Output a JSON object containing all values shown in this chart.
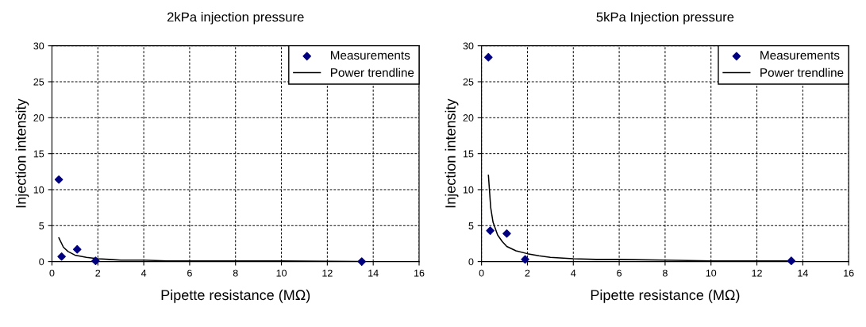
{
  "chart_data": [
    {
      "type": "scatter",
      "title": "2kPa injection pressure",
      "xlabel": "Pipette resistance (MΩ)",
      "ylabel": "Injection intensity",
      "xlim": [
        0,
        16
      ],
      "xticks": [
        0,
        2,
        4,
        6,
        8,
        10,
        12,
        14,
        16
      ],
      "ylim": [
        0,
        30
      ],
      "yticks": [
        0,
        5,
        10,
        15,
        20,
        25,
        30
      ],
      "grid": true,
      "legend": "top right",
      "series": [
        {
          "name": "Measurements",
          "marker": "diamond",
          "color": "#000080",
          "x": [
            0.3,
            0.42,
            1.1,
            1.9,
            13.5
          ],
          "values": [
            11.4,
            0.7,
            1.7,
            0.1,
            0.0
          ]
        },
        {
          "name": "Power trendline",
          "type": "line",
          "line_style": "solid",
          "color": "#000000",
          "x": [
            0.3,
            0.5,
            0.7,
            1.0,
            1.5,
            2,
            2.5,
            3,
            4,
            5,
            6,
            8,
            10,
            13.5
          ],
          "values": [
            3.3,
            2.0,
            1.4,
            0.9,
            0.6,
            0.4,
            0.3,
            0.2,
            0.2,
            0.1,
            0.1,
            0.1,
            0.1,
            0.0
          ]
        }
      ]
    },
    {
      "type": "scatter",
      "title": "5kPa Injection pressure",
      "xlabel": "Pipette resistance (MΩ)",
      "ylabel": "Injection intensity",
      "xlim": [
        0,
        16
      ],
      "xticks": [
        0,
        2,
        4,
        6,
        8,
        10,
        12,
        14,
        16
      ],
      "ylim": [
        0,
        30
      ],
      "yticks": [
        0,
        5,
        10,
        15,
        20,
        25,
        30
      ],
      "grid": true,
      "legend": "top right",
      "series": [
        {
          "name": "Measurements",
          "marker": "diamond",
          "color": "#000080",
          "x": [
            0.3,
            0.38,
            1.1,
            1.9,
            13.5
          ],
          "values": [
            28.4,
            4.3,
            3.9,
            0.3,
            0.1
          ]
        },
        {
          "name": "Power trendline",
          "type": "line",
          "line_style": "solid",
          "color": "#000000",
          "x": [
            0.3,
            0.4,
            0.5,
            0.7,
            0.9,
            1.1,
            1.5,
            2,
            2.5,
            3,
            4,
            5,
            6,
            8,
            10,
            13.5
          ],
          "values": [
            12,
            7.5,
            5.5,
            3.7,
            2.8,
            2.1,
            1.5,
            1.1,
            0.8,
            0.6,
            0.4,
            0.3,
            0.3,
            0.2,
            0.1,
            0.1
          ]
        }
      ]
    }
  ]
}
